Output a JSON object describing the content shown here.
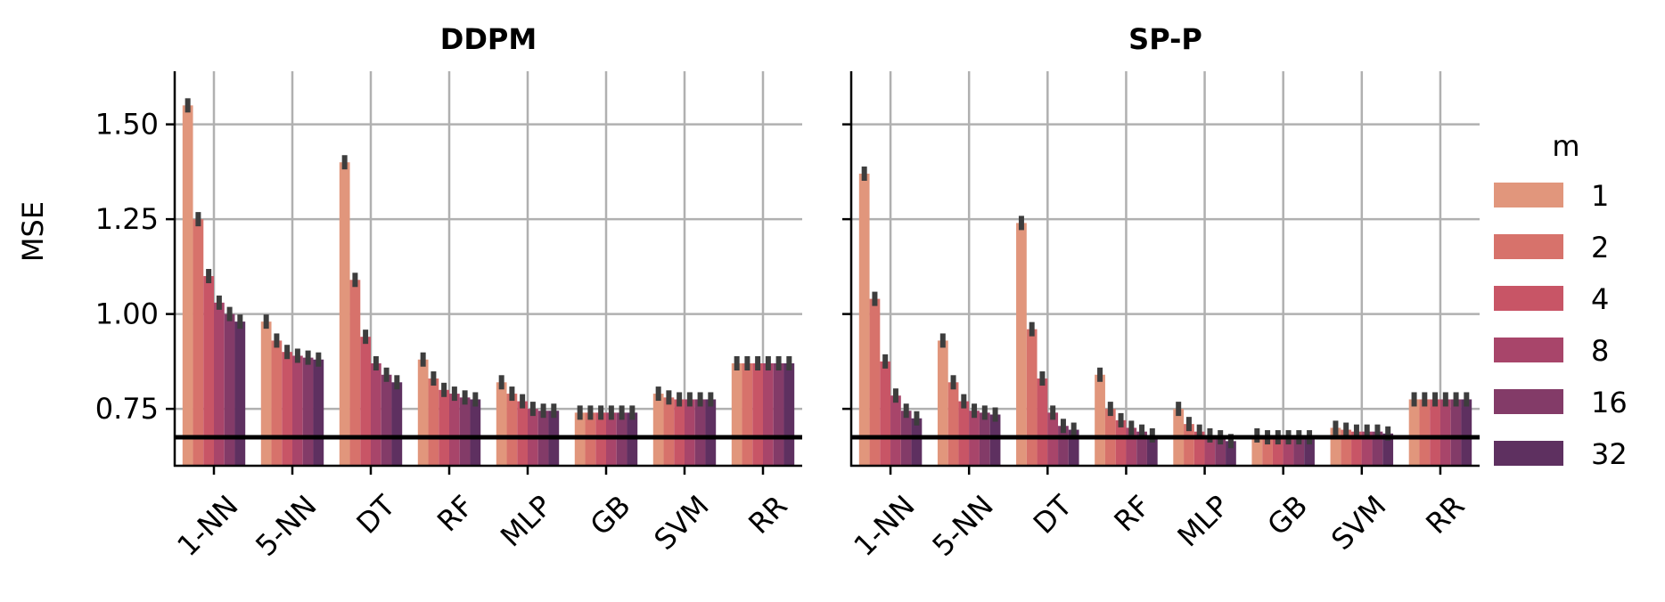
{
  "figure": {
    "ylabel": "MSE",
    "legend_title": "m",
    "legend_position": "right"
  },
  "colors": {
    "m1": "#e1967c",
    "m2": "#d7726b",
    "m4": "#c85566",
    "m8": "#a8456a",
    "m16": "#833b68",
    "m32": "#5e3060",
    "error_bar": "#3d3d3d",
    "reference_line": "#000000",
    "grid": "#b0b0b0"
  },
  "chart_data": [
    {
      "type": "bar",
      "title": "DDPM",
      "xlabel": "",
      "ylabel": "MSE",
      "ylim": [
        0.6,
        1.64
      ],
      "yticks": [
        "0.75",
        "1.00",
        "1.25",
        "1.50"
      ],
      "categories": [
        "1-NN",
        "5-NN",
        "DT",
        "RF",
        "MLP",
        "GB",
        "SVM",
        "RR"
      ],
      "grid": true,
      "reference_line": 0.675,
      "series": [
        {
          "name": "1",
          "values": [
            1.55,
            0.98,
            1.4,
            0.88,
            0.82,
            0.74,
            0.79,
            0.87
          ]
        },
        {
          "name": "2",
          "values": [
            1.25,
            0.93,
            1.09,
            0.83,
            0.79,
            0.74,
            0.78,
            0.87
          ]
        },
        {
          "name": "4",
          "values": [
            1.1,
            0.9,
            0.94,
            0.8,
            0.77,
            0.74,
            0.775,
            0.87
          ]
        },
        {
          "name": "8",
          "values": [
            1.03,
            0.89,
            0.87,
            0.79,
            0.75,
            0.74,
            0.775,
            0.87
          ]
        },
        {
          "name": "16",
          "values": [
            1.0,
            0.885,
            0.84,
            0.78,
            0.745,
            0.74,
            0.775,
            0.87
          ]
        },
        {
          "name": "32",
          "values": [
            0.98,
            0.88,
            0.82,
            0.775,
            0.745,
            0.74,
            0.775,
            0.87
          ]
        }
      ]
    },
    {
      "type": "bar",
      "title": "SP-P",
      "xlabel": "",
      "ylabel": "",
      "ylim": [
        0.6,
        1.64
      ],
      "categories": [
        "1-NN",
        "5-NN",
        "DT",
        "RF",
        "MLP",
        "GB",
        "SVM",
        "RR"
      ],
      "grid": true,
      "reference_line": 0.675,
      "series": [
        {
          "name": "1",
          "values": [
            1.37,
            0.93,
            1.24,
            0.84,
            0.75,
            0.68,
            0.7,
            0.775
          ]
        },
        {
          "name": "2",
          "values": [
            1.04,
            0.82,
            0.96,
            0.75,
            0.71,
            0.675,
            0.695,
            0.775
          ]
        },
        {
          "name": "4",
          "values": [
            0.875,
            0.77,
            0.83,
            0.72,
            0.69,
            0.675,
            0.69,
            0.775
          ]
        },
        {
          "name": "8",
          "values": [
            0.785,
            0.745,
            0.74,
            0.7,
            0.68,
            0.675,
            0.69,
            0.775
          ]
        },
        {
          "name": "16",
          "values": [
            0.745,
            0.74,
            0.705,
            0.69,
            0.675,
            0.675,
            0.69,
            0.775
          ]
        },
        {
          "name": "32",
          "values": [
            0.725,
            0.735,
            0.695,
            0.68,
            0.665,
            0.675,
            0.685,
            0.775
          ]
        }
      ]
    }
  ]
}
